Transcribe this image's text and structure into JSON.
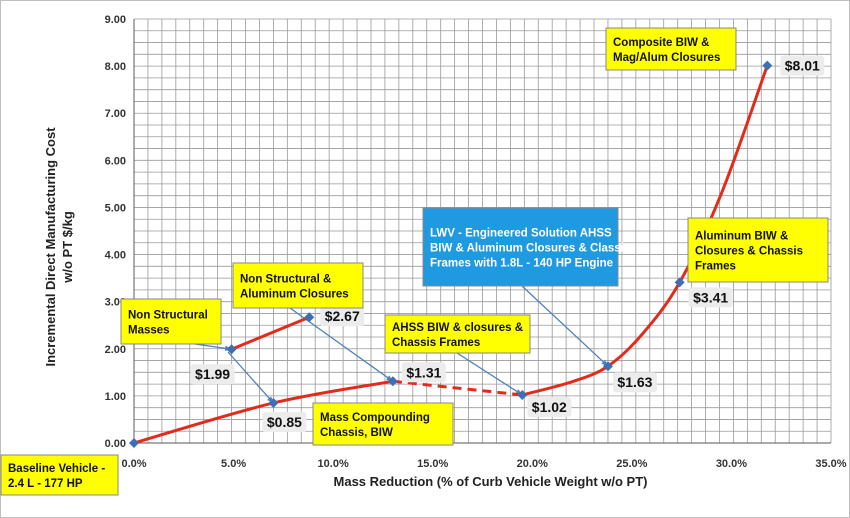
{
  "chart_data": {
    "type": "line",
    "xlabel": "Mass Reduction (% of Curb Vehicle Weight w/o PT)",
    "ylabel_lines": [
      "Incremental Direct Manufacturing Cost",
      "w/o PT $/kg"
    ],
    "xlim": [
      0,
      35
    ],
    "ylim": [
      0,
      9
    ],
    "x_ticks": [
      "0.0%",
      "5.0%",
      "10.0%",
      "15.0%",
      "20.0%",
      "25.0%",
      "30.0%",
      "35.0%"
    ],
    "y_ticks": [
      "0.00",
      "1.00",
      "2.00",
      "3.00",
      "4.00",
      "5.00",
      "6.00",
      "7.00",
      "8.00",
      "9.00"
    ],
    "grid": true,
    "colors": {
      "line": "#e32b1c",
      "marker": "#3d6fb5",
      "arrow": "#4f81bd",
      "note_yellow": "#ffff00",
      "note_blue": "#1f9ae0"
    },
    "points": [
      {
        "id": "baseline",
        "x": 0.0,
        "y": 0.0,
        "label": ""
      },
      {
        "id": "ns_masses",
        "x": 4.9,
        "y": 1.99,
        "label": "$1.99"
      },
      {
        "id": "mass_comp",
        "x": 7.0,
        "y": 0.85,
        "label": "$0.85"
      },
      {
        "id": "ns_alum",
        "x": 8.8,
        "y": 2.67,
        "label": "$2.67"
      },
      {
        "id": "ahss_start",
        "x": 13.0,
        "y": 1.31,
        "label": "$1.31"
      },
      {
        "id": "ahss_biw",
        "x": 19.5,
        "y": 1.02,
        "label": "$1.02"
      },
      {
        "id": "lwv",
        "x": 23.8,
        "y": 1.63,
        "label": "$1.63"
      },
      {
        "id": "alum_biw",
        "x": 27.4,
        "y": 3.41,
        "label": "$3.41"
      },
      {
        "id": "composite",
        "x": 31.8,
        "y": 8.01,
        "label": "$8.01"
      }
    ],
    "segments": [
      {
        "type": "solid",
        "points": [
          [
            4.9,
            1.99
          ],
          [
            8.8,
            2.67
          ]
        ]
      },
      {
        "type": "solid",
        "points": [
          [
            0.0,
            0.0
          ],
          [
            7.0,
            0.85
          ],
          [
            13.0,
            1.31
          ]
        ]
      },
      {
        "type": "dashed",
        "points": [
          [
            13.0,
            1.31
          ],
          [
            19.5,
            1.02
          ]
        ]
      },
      {
        "type": "solid",
        "points": [
          [
            19.5,
            1.02
          ],
          [
            22.0,
            1.3
          ],
          [
            23.8,
            1.63
          ],
          [
            25.5,
            2.3
          ],
          [
            27.4,
            3.41
          ],
          [
            29.5,
            5.3
          ],
          [
            31.8,
            8.01
          ]
        ]
      }
    ],
    "annotations": [
      {
        "id": "baseline",
        "lines": [
          "Baseline Vehicle -",
          "2.4 L - 177 HP"
        ],
        "style": "yellow"
      },
      {
        "id": "ns_masses",
        "lines": [
          "Non Structural",
          "Masses"
        ],
        "style": "yellow"
      },
      {
        "id": "ns_alum",
        "lines": [
          "Non Structural &",
          "Aluminum Closures"
        ],
        "style": "yellow"
      },
      {
        "id": "mass_comp",
        "lines": [
          "Mass Compounding",
          "Chassis, BIW"
        ],
        "style": "yellow"
      },
      {
        "id": "ahss",
        "lines": [
          "AHSS BIW & closures &",
          "Chassis Frames"
        ],
        "style": "yellow"
      },
      {
        "id": "lwv",
        "lines": [
          "LWV - Engineered Solution AHSS",
          "BIW & Aluminum Closures & Classis",
          "Frames with 1.8L - 140 HP Engine"
        ],
        "style": "blue"
      },
      {
        "id": "alum_biw",
        "lines": [
          "Aluminum BIW &",
          "Closures & Chassis",
          "Frames"
        ],
        "style": "yellow"
      },
      {
        "id": "composite",
        "lines": [
          "Composite BIW &",
          "Mag/Alum Closures"
        ],
        "style": "yellow"
      }
    ]
  }
}
